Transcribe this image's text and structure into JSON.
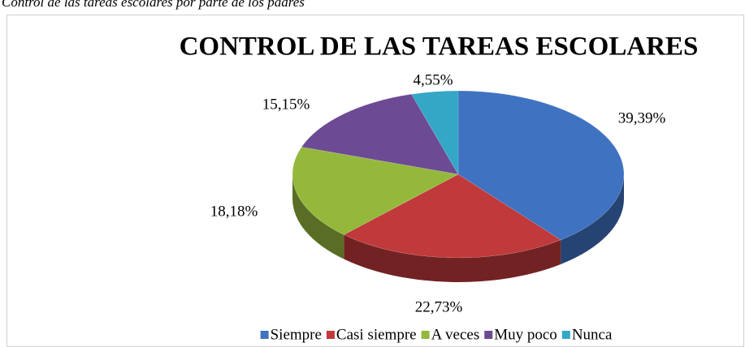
{
  "caption": "Control de las tareas escolares por parte de los padres",
  "chart_data": {
    "type": "pie3d",
    "title": "CONTROL DE LAS TAREAS ESCOLARES",
    "categories": [
      "Siempre",
      "Casi siempre",
      "A veces",
      "Muy poco",
      "Nunca"
    ],
    "values": [
      39.39,
      22.73,
      18.18,
      15.15,
      4.55
    ],
    "value_labels": [
      "39,39%",
      "22,73%",
      "18,18%",
      "15,15%",
      "4,55%"
    ],
    "colors": [
      "#3f72c0",
      "#c0393b",
      "#94b83c",
      "#6d4a94",
      "#34a7c6"
    ],
    "legend": "bottom"
  }
}
